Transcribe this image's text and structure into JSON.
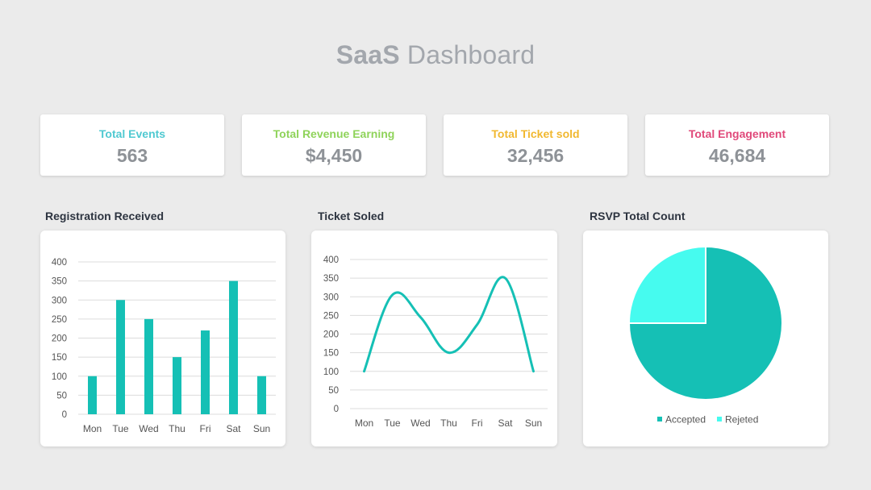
{
  "header": {
    "title_bold": "SaaS",
    "title_rest": "Dashboard"
  },
  "kpis": [
    {
      "label": "Total Events",
      "value": "563",
      "color": "#4fc9d1"
    },
    {
      "label": "Total Revenue Earning",
      "value": "$4,450",
      "color": "#8fd35a"
    },
    {
      "label": "Total Ticket sold",
      "value": "32,456",
      "color": "#f1b830"
    },
    {
      "label": "Total Engagement",
      "value": "46,684",
      "color": "#e0497a"
    }
  ],
  "panels": {
    "registration": "Registration Received",
    "tickets": "Ticket Soled",
    "rsvp": "RSVP Total Count"
  },
  "colors": {
    "primary": "#15c0b5",
    "light": "#46fbef",
    "grid": "#dcdcdc",
    "axis_text": "#555555"
  },
  "chart_data": [
    {
      "type": "bar",
      "title": "Registration Received",
      "categories": [
        "Mon",
        "Tue",
        "Wed",
        "Thu",
        "Fri",
        "Sat",
        "Sun"
      ],
      "values": [
        100,
        300,
        250,
        150,
        220,
        350,
        100
      ],
      "ylim": [
        0,
        400
      ],
      "yticks": [
        0,
        50,
        100,
        150,
        200,
        250,
        300,
        350,
        400
      ],
      "grid": true
    },
    {
      "type": "line",
      "title": "Ticket Soled",
      "categories": [
        "Mon",
        "Tue",
        "Wed",
        "Thu",
        "Fri",
        "Sat",
        "Sun"
      ],
      "values": [
        100,
        305,
        245,
        150,
        225,
        350,
        100
      ],
      "ylim": [
        0,
        400
      ],
      "yticks": [
        0,
        50,
        100,
        150,
        200,
        250,
        300,
        350,
        400
      ],
      "grid": true,
      "smooth": true
    },
    {
      "type": "pie",
      "title": "RSVP Total Count",
      "slices": [
        {
          "label": "Accepted",
          "value": 75,
          "color": "#15c0b5"
        },
        {
          "label": "Rejeted",
          "value": 25,
          "color": "#46fbef"
        }
      ],
      "legend": "bottom"
    }
  ]
}
